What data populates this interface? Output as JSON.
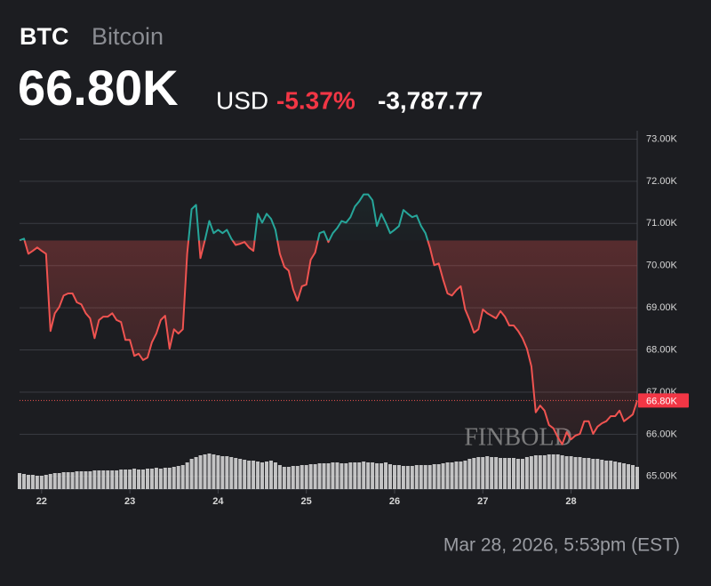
{
  "header": {
    "symbol": "BTC",
    "name": "Bitcoin",
    "price": "66.80K",
    "currency": "USD",
    "change_percent": "-5.37%",
    "change": "-3,787.77"
  },
  "chart_data": {
    "type": "line",
    "x": [
      21.75,
      21.8,
      21.85,
      21.9,
      21.95,
      22,
      22.05,
      22.1,
      22.15,
      22.2,
      22.25,
      22.3,
      22.35,
      22.4,
      22.45,
      22.5,
      22.55,
      22.6,
      22.65,
      22.7,
      22.75,
      22.8,
      22.85,
      22.9,
      22.95,
      23,
      23.05,
      23.1,
      23.15,
      23.2,
      23.25,
      23.3,
      23.35,
      23.4,
      23.45,
      23.5,
      23.55,
      23.6,
      23.65,
      23.7,
      23.75,
      23.8,
      23.85,
      23.9,
      23.95,
      24,
      24.05,
      24.1,
      24.15,
      24.2,
      24.25,
      24.3,
      24.35,
      24.4,
      24.45,
      24.5,
      24.55,
      24.6,
      24.65,
      24.7,
      24.75,
      24.8,
      24.85,
      24.9,
      24.95,
      25,
      25.05,
      25.1,
      25.15,
      25.2,
      25.25,
      25.3,
      25.35,
      25.4,
      25.45,
      25.5,
      25.55,
      25.6,
      25.65,
      25.7,
      25.75,
      25.8,
      25.85,
      25.9,
      25.95,
      26,
      26.05,
      26.1,
      26.15,
      26.2,
      26.25,
      26.3,
      26.35,
      26.4,
      26.45,
      26.5,
      26.55,
      26.6,
      26.65,
      26.7,
      26.75,
      26.8,
      26.85,
      26.9,
      26.95,
      27,
      27.05,
      27.1,
      27.15,
      27.2,
      27.25,
      27.3,
      27.35,
      27.4,
      27.45,
      27.5,
      27.55,
      27.6,
      27.65,
      27.7,
      27.75,
      27.8,
      27.85,
      27.9,
      27.95,
      28,
      28.05,
      28.1,
      28.15,
      28.2,
      28.25,
      28.3,
      28.35,
      28.4,
      28.45,
      28.5,
      28.55,
      28.6,
      28.65,
      28.7,
      28.75
    ],
    "values": [
      70.6,
      70.64,
      70.28,
      70.35,
      70.43,
      70.35,
      70.28,
      68.45,
      68.87,
      69.02,
      69.29,
      69.34,
      69.34,
      69.13,
      69.08,
      68.87,
      68.75,
      68.28,
      68.71,
      68.79,
      68.79,
      68.87,
      68.71,
      68.66,
      68.24,
      68.24,
      67.86,
      67.91,
      67.76,
      67.82,
      68.18,
      68.39,
      68.71,
      68.81,
      68.03,
      68.49,
      68.39,
      68.49,
      70.28,
      71.34,
      71.44,
      70.18,
      70.6,
      71.06,
      70.77,
      70.85,
      70.77,
      70.85,
      70.64,
      70.49,
      70.52,
      70.56,
      70.43,
      70.35,
      71.23,
      71.02,
      71.23,
      71.11,
      70.85,
      70.28,
      69.97,
      69.88,
      69.44,
      69.17,
      69.51,
      69.55,
      70.14,
      70.31,
      70.77,
      70.81,
      70.56,
      70.77,
      70.89,
      71.06,
      71.02,
      71.15,
      71.4,
      71.53,
      71.69,
      71.69,
      71.55,
      70.94,
      71.23,
      71.02,
      70.77,
      70.85,
      70.94,
      71.32,
      71.23,
      71.15,
      71.19,
      70.94,
      70.77,
      70.43,
      70.01,
      70.05,
      69.67,
      69.34,
      69.29,
      69.42,
      69.51,
      68.96,
      68.71,
      68.41,
      68.49,
      68.96,
      68.87,
      68.81,
      68.75,
      68.92,
      68.79,
      68.58,
      68.58,
      68.45,
      68.28,
      68.03,
      67.61,
      66.52,
      66.68,
      66.56,
      66.22,
      66.14,
      65.93,
      65.76,
      66.05,
      65.88,
      65.97,
      66.01,
      66.31,
      66.31,
      66.01,
      66.18,
      66.26,
      66.31,
      66.43,
      66.43,
      66.56,
      66.31,
      66.39,
      66.47,
      66.8
    ],
    "volume": [
      18,
      17,
      16,
      16,
      15,
      15,
      16,
      17,
      18,
      18,
      19,
      19,
      19,
      20,
      20,
      20,
      20,
      21,
      21,
      21,
      21,
      21,
      21,
      22,
      22,
      22,
      23,
      22,
      22,
      23,
      23,
      24,
      23,
      24,
      24,
      25,
      26,
      27,
      30,
      34,
      36,
      38,
      39,
      40,
      39,
      38,
      37,
      37,
      36,
      35,
      34,
      33,
      32,
      32,
      31,
      30,
      31,
      32,
      30,
      27,
      25,
      25,
      26,
      26,
      27,
      27,
      28,
      28,
      29,
      29,
      29,
      30,
      30,
      29,
      29,
      30,
      30,
      30,
      31,
      30,
      30,
      29,
      29,
      30,
      28,
      27,
      27,
      26,
      26,
      26,
      27,
      27,
      27,
      27,
      28,
      28,
      29,
      30,
      30,
      31,
      31,
      32,
      34,
      35,
      36,
      36,
      37,
      36,
      36,
      35,
      35,
      35,
      35,
      34,
      34,
      36,
      37,
      38,
      38,
      38,
      39,
      39,
      39,
      38,
      37,
      37,
      36,
      36,
      35,
      35,
      34,
      34,
      33,
      32,
      32,
      31,
      30,
      29,
      28,
      27,
      25
    ],
    "color_up": "#26a69a",
    "color_down": "#ef5350",
    "volume_color": "#d6d6d6",
    "xlim": [
      21.75,
      28.75
    ],
    "xticks": [
      22,
      23,
      24,
      25,
      26,
      27,
      28
    ],
    "ylim": [
      64.7,
      73.2
    ],
    "yticks": [
      {
        "value": 65,
        "label": "65.00K"
      },
      {
        "value": 66,
        "label": "66.00K"
      },
      {
        "value": 67,
        "label": "67.00K"
      },
      {
        "value": 68,
        "label": "68.00K"
      },
      {
        "value": 69,
        "label": "69.00K"
      },
      {
        "value": 70,
        "label": "70.00K"
      },
      {
        "value": 71,
        "label": "71.00K"
      },
      {
        "value": 72,
        "label": "72.00K"
      },
      {
        "value": 73,
        "label": "73.00K"
      }
    ],
    "grid": true,
    "last_price": {
      "value": 66.8,
      "label": "66.80K"
    },
    "watermark": "FINBOLD"
  },
  "footer": {
    "timestamp": "Mar 28, 2026, 5:53pm (EST)"
  }
}
